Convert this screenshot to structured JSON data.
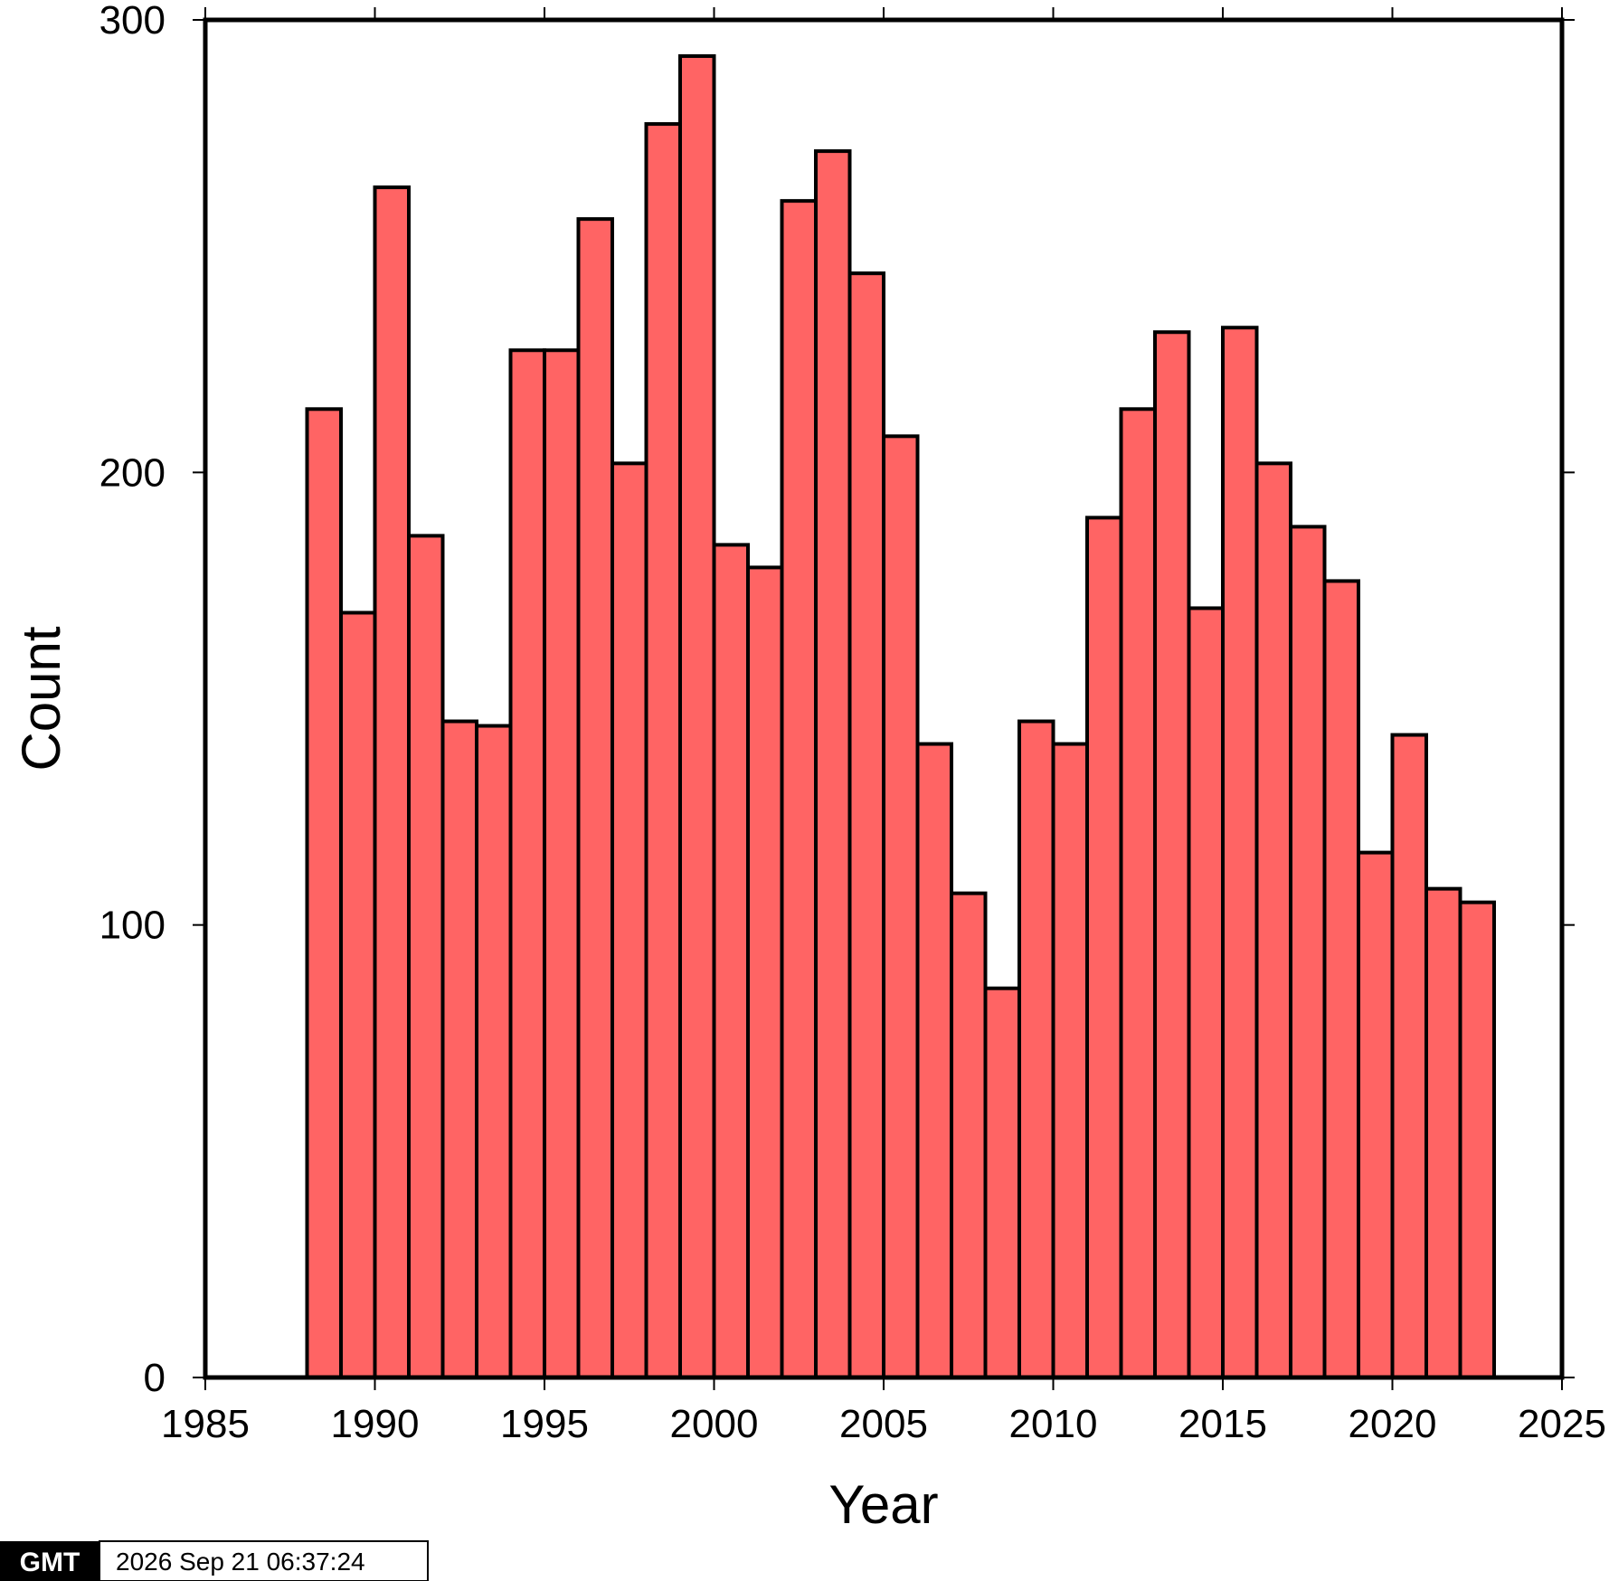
{
  "chart_data": {
    "type": "bar",
    "title": "",
    "xlabel": "Year",
    "ylabel": "Count",
    "xlim": [
      1985,
      2025
    ],
    "ylim": [
      0,
      300
    ],
    "x_ticks": [
      1985,
      1990,
      1995,
      2000,
      2005,
      2010,
      2015,
      2020,
      2025
    ],
    "y_ticks": [
      0,
      100,
      200,
      300
    ],
    "bin_width": 1,
    "bar_color": "#ff6464",
    "bar_edge_color": "#000000",
    "grid": false,
    "bins": [
      {
        "start": 1988,
        "value": 214
      },
      {
        "start": 1989,
        "value": 169
      },
      {
        "start": 1990,
        "value": 263
      },
      {
        "start": 1991,
        "value": 186
      },
      {
        "start": 1992,
        "value": 145
      },
      {
        "start": 1993,
        "value": 144
      },
      {
        "start": 1994,
        "value": 227
      },
      {
        "start": 1995,
        "value": 227
      },
      {
        "start": 1996,
        "value": 256
      },
      {
        "start": 1997,
        "value": 202
      },
      {
        "start": 1998,
        "value": 277
      },
      {
        "start": 1999,
        "value": 292
      },
      {
        "start": 2000,
        "value": 184
      },
      {
        "start": 2001,
        "value": 179
      },
      {
        "start": 2002,
        "value": 260
      },
      {
        "start": 2003,
        "value": 271
      },
      {
        "start": 2004,
        "value": 244
      },
      {
        "start": 2005,
        "value": 208
      },
      {
        "start": 2006,
        "value": 140
      },
      {
        "start": 2007,
        "value": 107
      },
      {
        "start": 2008,
        "value": 86
      },
      {
        "start": 2009,
        "value": 145
      },
      {
        "start": 2010,
        "value": 140
      },
      {
        "start": 2011,
        "value": 190
      },
      {
        "start": 2012,
        "value": 214
      },
      {
        "start": 2013,
        "value": 231
      },
      {
        "start": 2014,
        "value": 170
      },
      {
        "start": 2015,
        "value": 232
      },
      {
        "start": 2016,
        "value": 202
      },
      {
        "start": 2017,
        "value": 188
      },
      {
        "start": 2018,
        "value": 176
      },
      {
        "start": 2019,
        "value": 116
      },
      {
        "start": 2020,
        "value": 142
      },
      {
        "start": 2021,
        "value": 108
      },
      {
        "start": 2022,
        "value": 105
      }
    ]
  },
  "timestamp": {
    "logo_text": "GMT",
    "text": "2026 Sep 21 06:37:24"
  }
}
